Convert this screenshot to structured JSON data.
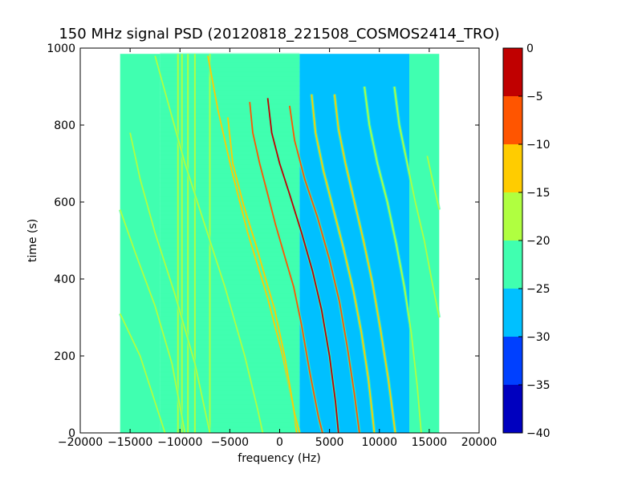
{
  "chart_data": {
    "type": "heatmap",
    "title": "150 MHz signal PSD (20120818_221508_COSMOS2414_TRO)",
    "xlabel": "frequency (Hz)",
    "ylabel": "time (s)",
    "xlim": [
      -20000,
      20000
    ],
    "ylim": [
      0,
      1000
    ],
    "xticks": [
      -20000,
      -15000,
      -10000,
      -5000,
      0,
      5000,
      10000,
      15000,
      20000
    ],
    "xtick_labels": [
      "−20000",
      "−15000",
      "−10000",
      "−5000",
      "0",
      "5000",
      "10000",
      "15000",
      "20000"
    ],
    "yticks": [
      0,
      200,
      400,
      600,
      800,
      1000
    ],
    "ytick_labels": [
      "0",
      "200",
      "400",
      "600",
      "800",
      "1000"
    ],
    "data_extent": {
      "x": [
        -16000,
        16000
      ],
      "y": [
        0,
        985
      ]
    },
    "background_bands": [
      {
        "x": [
          -16000,
          -12000
        ],
        "level": -22.5
      },
      {
        "x": [
          -12000,
          2000
        ],
        "level": -25
      },
      {
        "x": [
          2000,
          13000
        ],
        "level": -27.5
      },
      {
        "x": [
          13000,
          16000
        ],
        "level": -22.5
      }
    ],
    "vertical_lines": [
      {
        "x": -9800,
        "level": -17.5
      },
      {
        "x": -9200,
        "level": -17.5
      },
      {
        "x": -8500,
        "level": -20
      },
      {
        "x": -7000,
        "level": -20
      },
      {
        "x": -10200,
        "level": -20
      }
    ],
    "traces": [
      {
        "points": [
          [
            -16000,
            310
          ],
          [
            -14000,
            200
          ],
          [
            -12500,
            80
          ],
          [
            -11500,
            0
          ]
        ],
        "level": -17.5
      },
      {
        "points": [
          [
            -16000,
            580
          ],
          [
            -14500,
            470
          ],
          [
            -12500,
            330
          ],
          [
            -10800,
            180
          ],
          [
            -9500,
            0
          ]
        ],
        "level": -17.5
      },
      {
        "points": [
          [
            -15000,
            780
          ],
          [
            -14000,
            660
          ],
          [
            -12500,
            520
          ],
          [
            -10500,
            360
          ],
          [
            -8500,
            180
          ],
          [
            -7000,
            0
          ]
        ],
        "level": -17.5
      },
      {
        "points": [
          [
            -12500,
            980
          ],
          [
            -11000,
            840
          ],
          [
            -9500,
            700
          ],
          [
            -7500,
            540
          ],
          [
            -5500,
            380
          ],
          [
            -3500,
            200
          ],
          [
            -2200,
            60
          ],
          [
            -1700,
            0
          ]
        ],
        "level": -17.5
      },
      {
        "points": [
          [
            -7200,
            980
          ],
          [
            -6200,
            840
          ],
          [
            -4800,
            680
          ],
          [
            -3200,
            520
          ],
          [
            -1200,
            350
          ],
          [
            300,
            200
          ],
          [
            1400,
            60
          ],
          [
            1700,
            0
          ]
        ],
        "level": -15
      },
      {
        "points": [
          [
            -5200,
            820
          ],
          [
            -4700,
            700
          ],
          [
            -3600,
            590
          ],
          [
            -2400,
            490
          ],
          [
            -1400,
            400
          ],
          [
            -500,
            320
          ],
          [
            500,
            200
          ],
          [
            1500,
            50
          ],
          [
            2000,
            0
          ]
        ],
        "level": -12.5
      },
      {
        "points": [
          [
            -3000,
            860
          ],
          [
            -2700,
            780
          ],
          [
            -2000,
            700
          ],
          [
            -1200,
            620
          ],
          [
            -400,
            540
          ],
          [
            600,
            450
          ],
          [
            1400,
            380
          ],
          [
            2200,
            280
          ],
          [
            3000,
            160
          ],
          [
            3900,
            40
          ],
          [
            4300,
            0
          ]
        ],
        "level": -7.5
      },
      {
        "points": [
          [
            -1200,
            870
          ],
          [
            -800,
            780
          ],
          [
            0,
            700
          ],
          [
            1000,
            620
          ],
          [
            2200,
            520
          ],
          [
            3300,
            420
          ],
          [
            4200,
            320
          ],
          [
            5000,
            200
          ],
          [
            5600,
            80
          ],
          [
            5900,
            0
          ]
        ],
        "level": -2.5
      },
      {
        "points": [
          [
            1000,
            850
          ],
          [
            1500,
            760
          ],
          [
            2500,
            660
          ],
          [
            3800,
            560
          ],
          [
            5000,
            450
          ],
          [
            6000,
            340
          ],
          [
            6800,
            220
          ],
          [
            7500,
            100
          ],
          [
            8000,
            0
          ]
        ],
        "level": -7.5
      },
      {
        "points": [
          [
            3200,
            880
          ],
          [
            3600,
            780
          ],
          [
            4400,
            680
          ],
          [
            5400,
            580
          ],
          [
            6400,
            480
          ],
          [
            7400,
            370
          ],
          [
            8200,
            260
          ],
          [
            8900,
            140
          ],
          [
            9500,
            0
          ]
        ],
        "level": -12.5
      },
      {
        "points": [
          [
            5500,
            880
          ],
          [
            5900,
            790
          ],
          [
            6600,
            700
          ],
          [
            7500,
            600
          ],
          [
            8400,
            500
          ],
          [
            9300,
            390
          ],
          [
            10100,
            270
          ],
          [
            10900,
            140
          ],
          [
            11600,
            0
          ]
        ],
        "level": -15
      },
      {
        "points": [
          [
            8500,
            900
          ],
          [
            9000,
            800
          ],
          [
            9800,
            700
          ],
          [
            10800,
            600
          ],
          [
            11700,
            490
          ],
          [
            12500,
            380
          ],
          [
            13200,
            260
          ],
          [
            13800,
            120
          ],
          [
            14200,
            0
          ]
        ],
        "level": -17.5
      },
      {
        "points": [
          [
            11500,
            900
          ],
          [
            12000,
            800
          ],
          [
            12800,
            700
          ],
          [
            13600,
            600
          ],
          [
            14500,
            500
          ],
          [
            15300,
            390
          ],
          [
            16000,
            300
          ]
        ],
        "level": -17.5
      },
      {
        "points": [
          [
            14800,
            720
          ],
          [
            15300,
            660
          ],
          [
            16000,
            580
          ]
        ],
        "level": -17.5
      }
    ],
    "colorbar": {
      "range": [
        -40,
        0
      ],
      "boundaries": [
        -40,
        -35,
        -30,
        -25,
        -20,
        -15,
        -10,
        -5,
        0
      ],
      "colors": [
        "#0000bf",
        "#0040ff",
        "#00c0ff",
        "#40ffb0",
        "#b0ff40",
        "#ffcc00",
        "#ff5500",
        "#c00000"
      ],
      "ticks": [
        -40,
        -35,
        -30,
        -25,
        -20,
        -15,
        -10,
        -5,
        0
      ],
      "tick_labels": [
        "−40",
        "−35",
        "−30",
        "−25",
        "−20",
        "−15",
        "−10",
        "−5",
        "0"
      ]
    }
  }
}
